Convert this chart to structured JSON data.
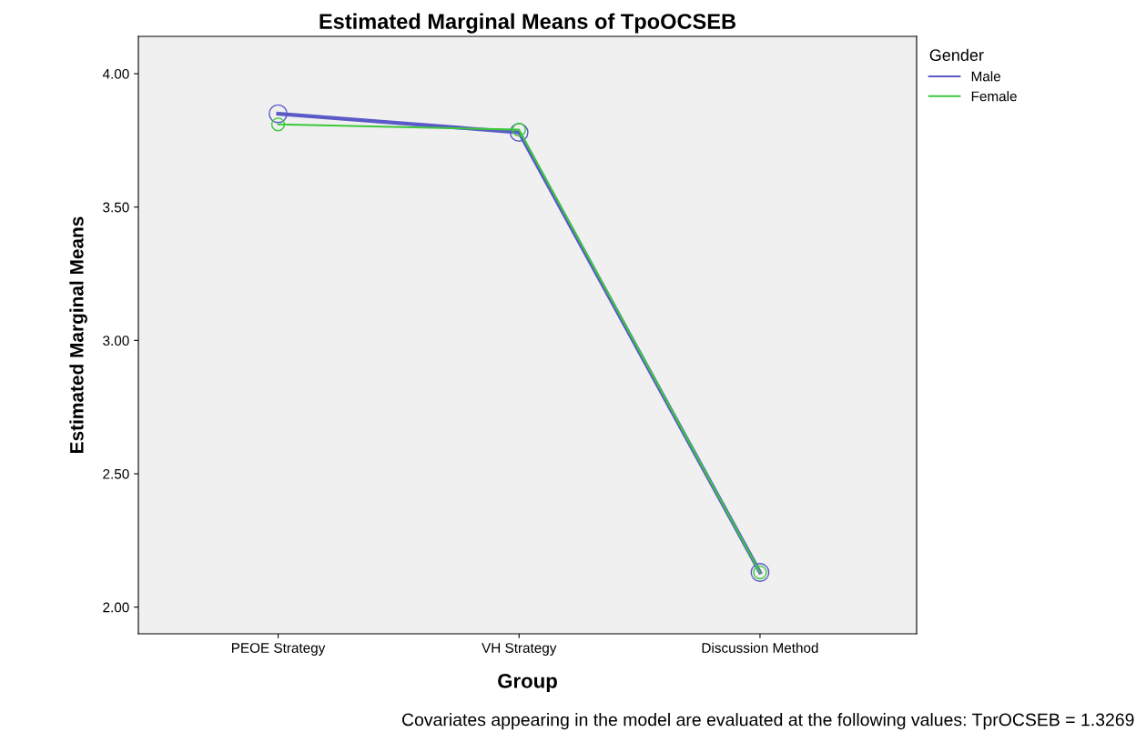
{
  "chart_data": {
    "type": "line",
    "title": "Estimated Marginal Means of TpoOCSEB",
    "xlabel": "Group",
    "ylabel": "Estimated Marginal Means",
    "legend_title": "Gender",
    "categories": [
      "PEOE Strategy",
      "VH Strategy",
      "Discussion Method"
    ],
    "series": [
      {
        "name": "Male",
        "color": "#5a5ac8",
        "values": [
          3.85,
          3.78,
          2.13
        ]
      },
      {
        "name": "Female",
        "color": "#3cc83c",
        "values": [
          3.81,
          3.79,
          2.13
        ]
      }
    ],
    "ylim": [
      1.9,
      4.14
    ],
    "yticks": [
      {
        "value": 2,
        "label": "2.00"
      },
      {
        "value": 2.5,
        "label": "2.50"
      },
      {
        "value": 3,
        "label": "3.00"
      },
      {
        "value": 3.5,
        "label": "3.50"
      },
      {
        "value": 4,
        "label": "4.00"
      }
    ],
    "marker": "circle",
    "line_style": "solid",
    "grid": false,
    "legend": "top right",
    "annotations": [
      "Covariates appearing in the model are evaluated at the following values: TprOCSEB = 1.3269"
    ]
  }
}
